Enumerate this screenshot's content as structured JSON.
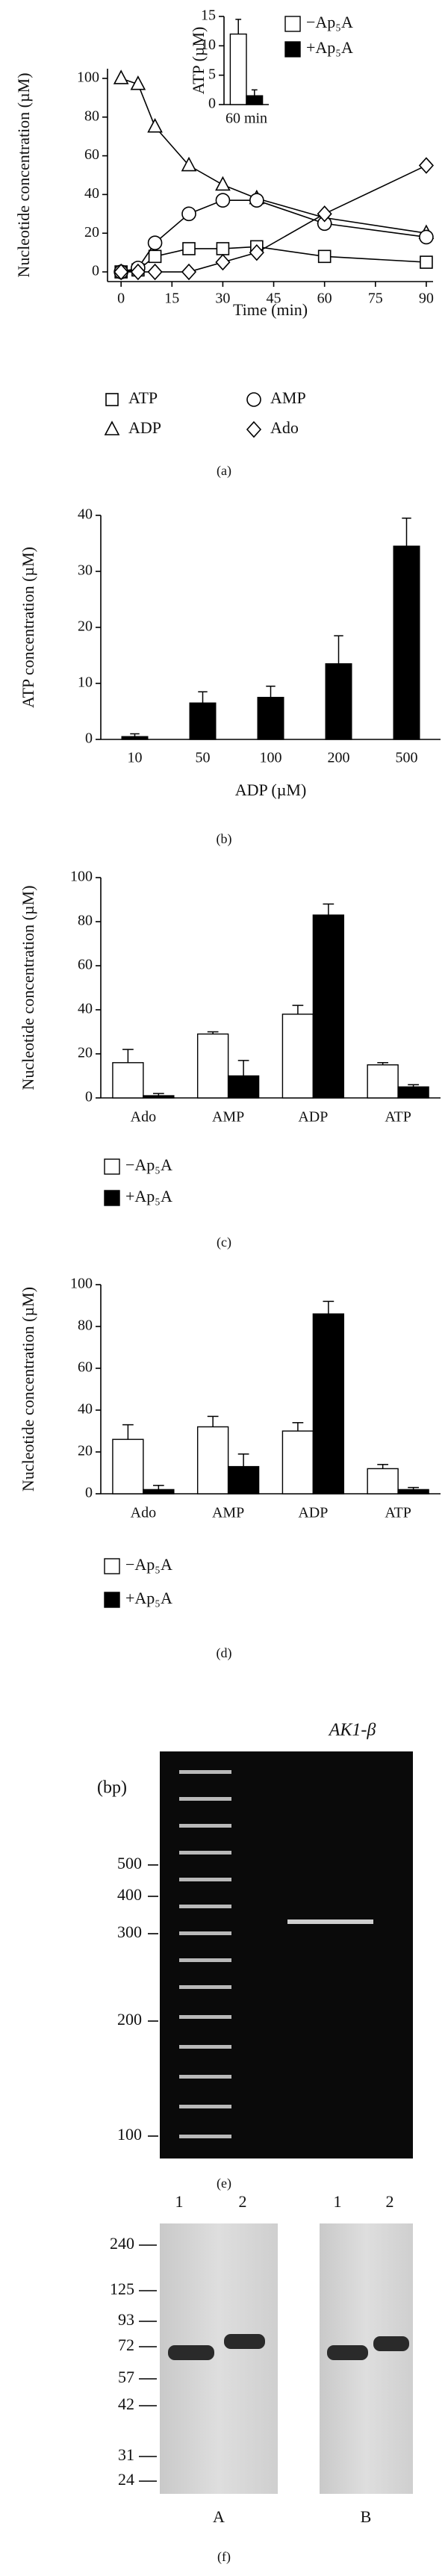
{
  "chart_data": [
    {
      "type": "line",
      "ylabel": "Nucleotide concentration (µM)",
      "xlabel": "Time (min)",
      "x": [
        0,
        5,
        10,
        20,
        30,
        40,
        60,
        90
      ],
      "xlim": [
        -4,
        92
      ],
      "xticks": [
        0,
        15,
        30,
        45,
        60,
        75,
        90
      ],
      "ylim": [
        -5,
        105
      ],
      "yticks": [
        0,
        20,
        40,
        60,
        80,
        100
      ],
      "series": [
        {
          "name": "ATP",
          "marker": "square",
          "color": "#000000",
          "values": [
            0,
            1,
            8,
            12,
            12,
            13,
            8,
            5
          ]
        },
        {
          "name": "ADP",
          "marker": "triangle",
          "color": "#000000",
          "values": [
            100,
            97,
            75,
            55,
            45,
            38,
            28,
            20
          ]
        },
        {
          "name": "AMP",
          "marker": "circle",
          "color": "#000000",
          "values": [
            0,
            2,
            15,
            30,
            37,
            37,
            25,
            18
          ]
        },
        {
          "name": "Ado",
          "marker": "diamond",
          "color": "#000000",
          "values": [
            0,
            0,
            0,
            0,
            5,
            10,
            30,
            55
          ]
        }
      ],
      "legend": "below"
    },
    {
      "type": "bar",
      "ylabel": "ATP (µM)",
      "categories": [
        "60 min"
      ],
      "ylim": [
        0,
        15
      ],
      "yticks": [
        0,
        5,
        10,
        15
      ],
      "series": [
        {
          "name": "−Ap₅A",
          "color": "#ffffff",
          "values": [
            12
          ],
          "errors": [
            2.5
          ]
        },
        {
          "name": "+Ap₅A",
          "color": "#000000",
          "values": [
            1.5
          ],
          "errors": [
            1
          ]
        }
      ],
      "legend": "upper right"
    },
    {
      "type": "bar",
      "ylabel": "ATP concentration (µM)",
      "xlabel": "ADP (µM)",
      "categories": [
        "10",
        "50",
        "100",
        "200",
        "500"
      ],
      "values": [
        0.5,
        6.5,
        7.5,
        13.5,
        34.5
      ],
      "errors": [
        0.5,
        2,
        2,
        5,
        5
      ],
      "color": "#000000",
      "ylim": [
        0,
        40
      ],
      "yticks": [
        0,
        10,
        20,
        30,
        40
      ]
    },
    {
      "type": "bar",
      "ylabel": "Nucleotide concentration (µM)",
      "categories": [
        "Ado",
        "AMP",
        "ADP",
        "ATP"
      ],
      "ylim": [
        0,
        100
      ],
      "yticks": [
        0,
        20,
        40,
        60,
        80,
        100
      ],
      "series": [
        {
          "name": "−Ap₅A",
          "color": "#ffffff",
          "values": [
            16,
            29,
            38,
            15
          ],
          "errors": [
            6,
            1,
            4,
            1
          ]
        },
        {
          "name": "+Ap₅A",
          "color": "#000000",
          "values": [
            1,
            10,
            83,
            5
          ],
          "errors": [
            1,
            7,
            5,
            1
          ]
        }
      ],
      "legend": "below"
    },
    {
      "type": "bar",
      "ylabel": "Nucleotide concentration (µM)",
      "categories": [
        "Ado",
        "AMP",
        "ADP",
        "ATP"
      ],
      "ylim": [
        0,
        100
      ],
      "yticks": [
        0,
        20,
        40,
        60,
        80,
        100
      ],
      "series": [
        {
          "name": "−Ap₅A",
          "color": "#ffffff",
          "values": [
            26,
            32,
            30,
            12
          ],
          "errors": [
            7,
            5,
            4,
            2
          ]
        },
        {
          "name": "+Ap₅A",
          "color": "#000000",
          "values": [
            2,
            13,
            86,
            2
          ],
          "errors": [
            2,
            6,
            6,
            1
          ]
        }
      ],
      "legend": "below"
    }
  ],
  "figure": {
    "captions": [
      "(a)",
      "(b)",
      "(c)",
      "(d)",
      "(e)",
      "(f)"
    ],
    "gel_e": {
      "lane_label": "AK1-β",
      "unit": "(bp)",
      "ladder": [
        500,
        400,
        300,
        200,
        100
      ]
    },
    "blot_f": {
      "lanes": [
        "1",
        "2",
        "1",
        "2"
      ],
      "markers": [
        240,
        125,
        93,
        72,
        57,
        42,
        31,
        24
      ],
      "panels": [
        "A",
        "B"
      ]
    }
  }
}
